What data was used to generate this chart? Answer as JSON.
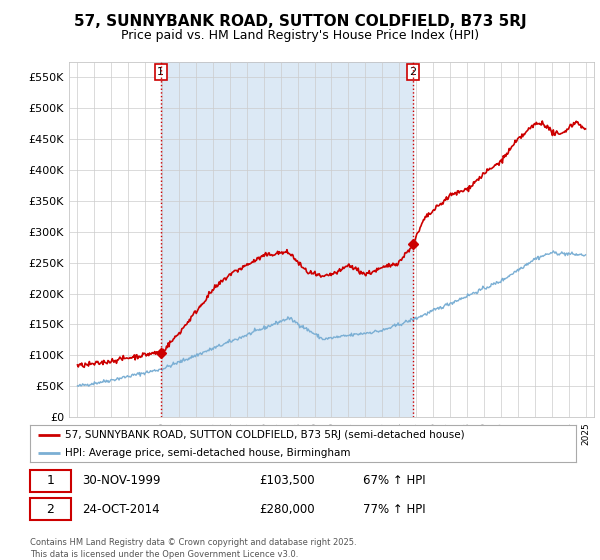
{
  "title": "57, SUNNYBANK ROAD, SUTTON COLDFIELD, B73 5RJ",
  "subtitle": "Price paid vs. HM Land Registry's House Price Index (HPI)",
  "ylabel_ticks": [
    "£0",
    "£50K",
    "£100K",
    "£150K",
    "£200K",
    "£250K",
    "£300K",
    "£350K",
    "£400K",
    "£450K",
    "£500K",
    "£550K"
  ],
  "ytick_values": [
    0,
    50000,
    100000,
    150000,
    200000,
    250000,
    300000,
    350000,
    400000,
    450000,
    500000,
    550000
  ],
  "ylim": [
    0,
    575000
  ],
  "xlim_start": 1994.5,
  "xlim_end": 2025.5,
  "property_color": "#cc0000",
  "hpi_color": "#7bafd4",
  "shaded_color": "#dce9f5",
  "marker1_year": 1999.92,
  "marker1_value": 103500,
  "marker2_year": 2014.81,
  "marker2_value": 280000,
  "marker1_label": "1",
  "marker2_label": "2",
  "vline_color": "#cc0000",
  "vline_style": ":",
  "legend_label1": "57, SUNNYBANK ROAD, SUTTON COLDFIELD, B73 5RJ (semi-detached house)",
  "legend_label2": "HPI: Average price, semi-detached house, Birmingham",
  "table_row1": [
    "1",
    "30-NOV-1999",
    "£103,500",
    "67% ↑ HPI"
  ],
  "table_row2": [
    "2",
    "24-OCT-2014",
    "£280,000",
    "77% ↑ HPI"
  ],
  "footer": "Contains HM Land Registry data © Crown copyright and database right 2025.\nThis data is licensed under the Open Government Licence v3.0.",
  "bg_color": "#ffffff",
  "grid_color": "#cccccc",
  "title_fontsize": 11,
  "subtitle_fontsize": 9,
  "tick_fontsize": 8
}
